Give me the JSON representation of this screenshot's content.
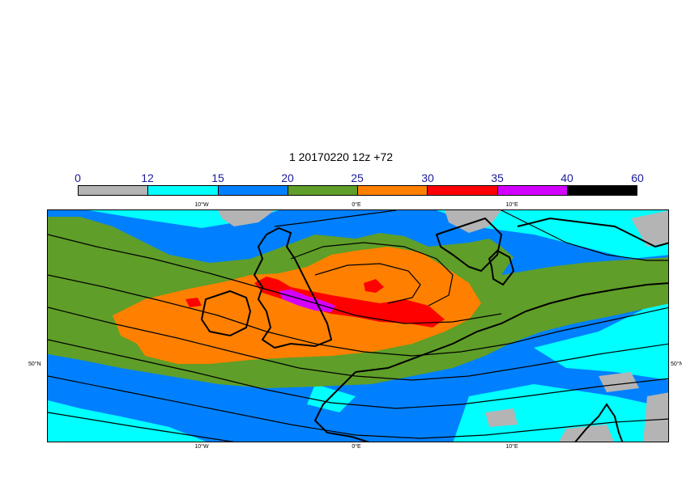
{
  "title": "1 20170220 12z +72",
  "legend": {
    "labels": [
      "0",
      "12",
      "15",
      "20",
      "25",
      "30",
      "35",
      "40",
      "60"
    ],
    "colors": [
      "#b4b4b4",
      "#00ffff",
      "#0080ff",
      "#5f9e28",
      "#ff8000",
      "#ff0000",
      "#d400ff",
      "#000000"
    ]
  },
  "map": {
    "longitude_labels": [
      "10°W",
      "0°E",
      "10°E"
    ],
    "latitude_labels": [
      "50°N"
    ],
    "colors": {
      "background": "#0080ff",
      "gray": "#b4b4b4",
      "cyan": "#00ffff",
      "green": "#5f9e28",
      "orange": "#ff8000",
      "red": "#ff0000",
      "magenta": "#d400ff",
      "isobar": "#000000",
      "coast": "#000000"
    }
  }
}
